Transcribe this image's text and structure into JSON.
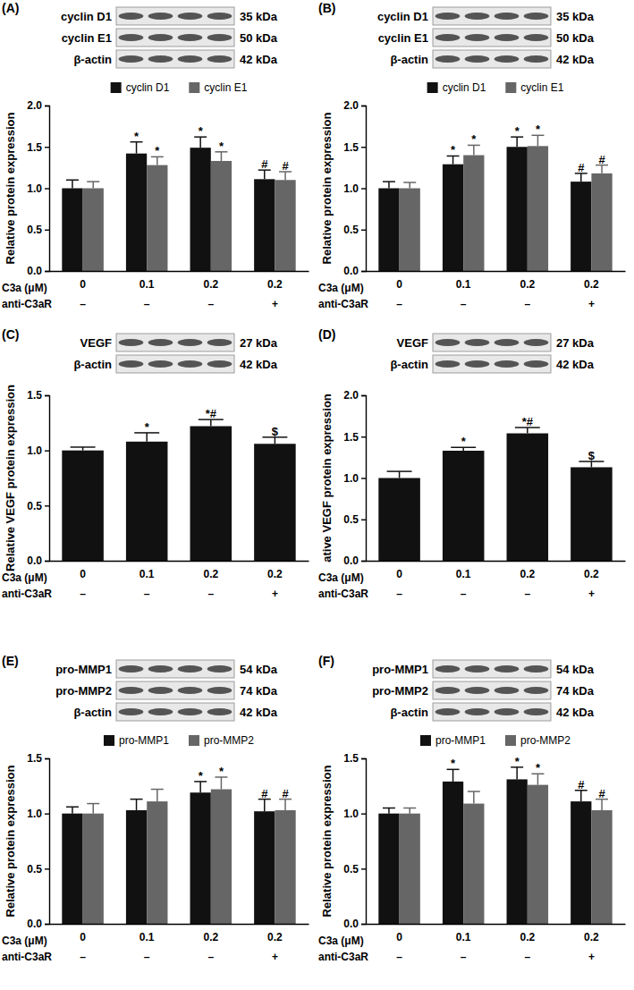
{
  "chart_data": [
    {
      "type": "bar",
      "panel": "(A)",
      "blots": [
        {
          "name": "cyclin D1",
          "size": "35 kDa"
        },
        {
          "name": "cyclin E1",
          "size": "50 kDa"
        },
        {
          "name": "β-actin",
          "size": "42 kDa"
        }
      ],
      "legend": "top",
      "ylabel": "Relative protein expression",
      "ylim": [
        0,
        2
      ],
      "yticks": [
        {
          "value": 0,
          "label": "0.0"
        },
        0.5,
        {
          "value": 1,
          "label": "1.0"
        },
        1.5,
        {
          "value": 2,
          "label": "2.0"
        }
      ],
      "x_row_labels": [
        "C3a (μM)",
        "anti-C3aR"
      ],
      "categories": [
        "0",
        "0.1",
        "0.2",
        "0.2"
      ],
      "categories2": [
        "–",
        "–",
        "–",
        "+"
      ],
      "series": [
        {
          "name": "cyclin D1",
          "color": "#111111",
          "values": [
            1.0,
            1.42,
            1.49,
            1.11
          ],
          "errors": [
            0.1,
            0.14,
            0.13,
            0.11
          ],
          "annotations": [
            null,
            "*",
            "*",
            "#"
          ]
        },
        {
          "name": "cyclin E1",
          "color": "#666666",
          "values": [
            1.0,
            1.28,
            1.33,
            1.1
          ],
          "errors": [
            0.08,
            0.1,
            0.11,
            0.1
          ],
          "annotations": [
            null,
            "*",
            "*",
            "#"
          ]
        }
      ]
    },
    {
      "type": "bar",
      "panel": "(B)",
      "blots": [
        {
          "name": "cyclin D1",
          "size": "35 kDa"
        },
        {
          "name": "cyclin E1",
          "size": "50 kDa"
        },
        {
          "name": "β-actin",
          "size": "42 kDa"
        }
      ],
      "legend": "top",
      "ylabel": "Relative protein expression",
      "ylim": [
        0,
        2
      ],
      "yticks": [
        {
          "value": 0,
          "label": "0.0"
        },
        0.5,
        {
          "value": 1,
          "label": "1.0"
        },
        1.5,
        {
          "value": 2,
          "label": "2.0"
        }
      ],
      "x_row_labels": [
        "C3a (μM)",
        "anti-C3aR"
      ],
      "categories": [
        "0",
        "0.1",
        "0.2",
        "0.2"
      ],
      "categories2": [
        "–",
        "–",
        "–",
        "+"
      ],
      "series": [
        {
          "name": "cyclin D1",
          "color": "#111111",
          "values": [
            1.0,
            1.29,
            1.5,
            1.08
          ],
          "errors": [
            0.08,
            0.1,
            0.12,
            0.1
          ],
          "annotations": [
            null,
            "*",
            "*",
            "#"
          ]
        },
        {
          "name": "cyclin E1",
          "color": "#666666",
          "values": [
            1.0,
            1.4,
            1.51,
            1.18
          ],
          "errors": [
            0.07,
            0.12,
            0.13,
            0.1
          ],
          "annotations": [
            null,
            "*",
            "*",
            "#"
          ]
        }
      ]
    },
    {
      "type": "bar",
      "panel": "(C)",
      "blots": [
        {
          "name": "VEGF",
          "size": "27 kDa"
        },
        {
          "name": "β-actin",
          "size": "42 kDa"
        }
      ],
      "ylabel": "Relative VEGF protein expression",
      "ylim": [
        0,
        1.5
      ],
      "yticks": [
        {
          "value": 0,
          "label": "0.0"
        },
        0.5,
        {
          "value": 1,
          "label": "1.0"
        },
        1.5
      ],
      "x_row_labels": [
        "C3a (μM)",
        "anti-C3aR"
      ],
      "categories": [
        "0",
        "0.1",
        "0.2",
        "0.2"
      ],
      "categories2": [
        "–",
        "–",
        "–",
        "+"
      ],
      "series": [
        {
          "color": "#111111",
          "values": [
            1.0,
            1.08,
            1.22,
            1.06
          ],
          "errors": [
            0.03,
            0.08,
            0.06,
            0.06
          ],
          "annotations": [
            null,
            "*",
            "*#",
            "$"
          ]
        }
      ]
    },
    {
      "type": "bar",
      "panel": "(D)",
      "blots": [
        {
          "name": "VEGF",
          "size": "27 kDa"
        },
        {
          "name": "β-actin",
          "size": "42 kDa"
        }
      ],
      "ylabel": "ative VEGF protein expression",
      "ylim": [
        0,
        2
      ],
      "yticks": [
        {
          "value": 0,
          "label": "0.0"
        },
        0.5,
        {
          "value": 1,
          "label": "1.0"
        },
        1.5,
        {
          "value": 2,
          "label": "2.0"
        }
      ],
      "x_row_labels": [
        "C3a (μM)",
        "anti-C3aR"
      ],
      "categories": [
        "0",
        "0.1",
        "0.2",
        "0.2"
      ],
      "categories2": [
        "–",
        "–",
        "–",
        "+"
      ],
      "series": [
        {
          "color": "#111111",
          "values": [
            1.0,
            1.33,
            1.54,
            1.13
          ],
          "errors": [
            0.08,
            0.04,
            0.07,
            0.07
          ],
          "annotations": [
            null,
            "*",
            "*#",
            "$"
          ]
        }
      ]
    },
    {
      "type": "bar",
      "panel": "(E)",
      "blots": [
        {
          "name": "pro-MMP1",
          "size": "54 kDa"
        },
        {
          "name": "pro-MMP2",
          "size": "74 kDa"
        },
        {
          "name": "β-actin",
          "size": "42 kDa"
        }
      ],
      "legend": "top",
      "ylabel": "Relative protein expression",
      "ylim": [
        0,
        1.5
      ],
      "yticks": [
        {
          "value": 0,
          "label": "0.0"
        },
        0.5,
        {
          "value": 1,
          "label": "1.0"
        },
        1.5
      ],
      "x_row_labels": [
        "C3a (μM)",
        "anti-C3aR"
      ],
      "categories": [
        "0",
        "0.1",
        "0.2",
        "0.2"
      ],
      "categories2": [
        "–",
        "–",
        "–",
        "+"
      ],
      "series": [
        {
          "name": "pro-MMP1",
          "color": "#111111",
          "values": [
            1.0,
            1.03,
            1.19,
            1.02
          ],
          "errors": [
            0.06,
            0.1,
            0.1,
            0.11
          ],
          "annotations": [
            null,
            null,
            "*",
            "#"
          ]
        },
        {
          "name": "pro-MMP2",
          "color": "#666666",
          "values": [
            1.0,
            1.11,
            1.22,
            1.03
          ],
          "errors": [
            0.09,
            0.11,
            0.11,
            0.1
          ],
          "annotations": [
            null,
            null,
            "*",
            "#"
          ]
        }
      ]
    },
    {
      "type": "bar",
      "panel": "(F)",
      "blots": [
        {
          "name": "pro-MMP1",
          "size": "54 kDa"
        },
        {
          "name": "pro-MMP2",
          "size": "74 kDa"
        },
        {
          "name": "β-actin",
          "size": "42 kDa"
        }
      ],
      "legend": "top",
      "ylabel": "Relative protein expression",
      "ylim": [
        0,
        1.5
      ],
      "yticks": [
        {
          "value": 0,
          "label": "0.0"
        },
        0.5,
        {
          "value": 1,
          "label": "1.0"
        },
        1.5
      ],
      "x_row_labels": [
        "C3a (μM)",
        "anti-C3aR"
      ],
      "categories": [
        "0",
        "0.1",
        "0.2",
        "0.2"
      ],
      "categories2": [
        "–",
        "–",
        "–",
        "+"
      ],
      "series": [
        {
          "name": "pro-MMP1",
          "color": "#111111",
          "values": [
            1.0,
            1.29,
            1.31,
            1.11
          ],
          "errors": [
            0.05,
            0.11,
            0.11,
            0.1
          ],
          "annotations": [
            null,
            "*",
            "*",
            "#"
          ]
        },
        {
          "name": "pro-MMP2",
          "color": "#666666",
          "values": [
            1.0,
            1.09,
            1.26,
            1.03
          ],
          "errors": [
            0.05,
            0.11,
            0.1,
            0.1
          ],
          "annotations": [
            null,
            null,
            "*",
            "#"
          ]
        }
      ]
    }
  ]
}
